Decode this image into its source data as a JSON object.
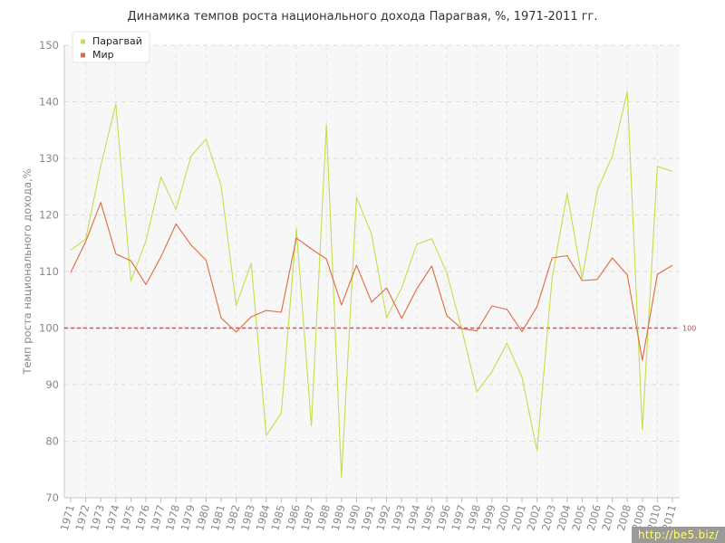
{
  "chart_data": {
    "type": "line",
    "title": "Динамика темпов роста национального дохода Парагвая, %, 1971-2011 гг.",
    "ylabel": "Темп роста национального дохода,%",
    "xlabel": "",
    "ylim": [
      70,
      150
    ],
    "yticks": [
      70,
      80,
      90,
      100,
      110,
      120,
      130,
      140,
      150
    ],
    "grid": true,
    "legend_position": "top-left",
    "categories": [
      "1971",
      "1972",
      "1973",
      "1974",
      "1975",
      "1976",
      "1977",
      "1978",
      "1979",
      "1980",
      "1981",
      "1982",
      "1983",
      "1984",
      "1985",
      "1986",
      "1987",
      "1988",
      "1989",
      "1990",
      "1991",
      "1992",
      "1993",
      "1994",
      "1995",
      "1996",
      "1997",
      "1998",
      "1999",
      "2000",
      "2001",
      "2002",
      "2003",
      "2004",
      "2005",
      "2006",
      "2007",
      "2008",
      "2009",
      "2010",
      "2011"
    ],
    "series": [
      {
        "name": "Парагвай",
        "color": "#c2df4c",
        "values": [
          113.8,
          115.7,
          128.7,
          139.6,
          108.3,
          115.4,
          126.7,
          121.0,
          130.4,
          133.4,
          125.2,
          104.0,
          111.4,
          81.0,
          85.0,
          117.6,
          82.7,
          136.0,
          73.6,
          123.1,
          116.6,
          101.8,
          107.1,
          114.8,
          115.8,
          109.8,
          99.7,
          88.7,
          92.3,
          97.3,
          91.3,
          78.3,
          108.8,
          123.8,
          108.8,
          124.3,
          130.4,
          141.8,
          82.0,
          128.6,
          127.7
        ]
      },
      {
        "name": "Мир",
        "color": "#e06a3f",
        "values": [
          109.8,
          115.3,
          122.2,
          113.1,
          111.9,
          107.7,
          112.6,
          118.4,
          114.7,
          112.0,
          101.8,
          99.3,
          102.0,
          103.1,
          102.8,
          115.9,
          114.0,
          112.2,
          104.1,
          111.1,
          104.6,
          107.1,
          101.7,
          106.9,
          111.0,
          102.2,
          99.9,
          99.5,
          103.9,
          103.3,
          99.4,
          103.8,
          112.4,
          112.8,
          108.4,
          108.6,
          112.4,
          109.4,
          94.3,
          109.5,
          111.1
        ]
      }
    ],
    "reference_line": {
      "value": 100,
      "label": "100",
      "color": "#b06060"
    }
  },
  "watermark": "http://be5.biz/"
}
